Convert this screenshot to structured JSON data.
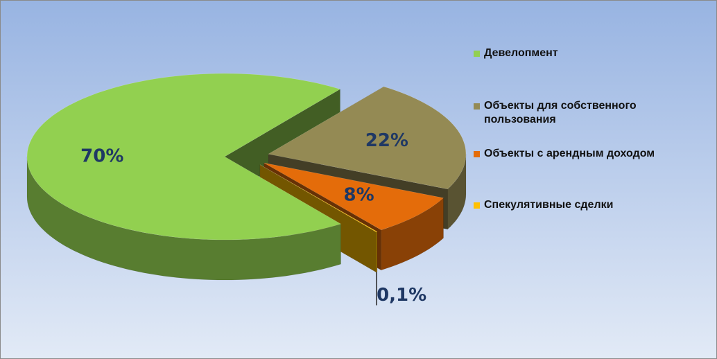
{
  "chart_data": {
    "type": "pie",
    "categories": [
      "Девелопмент",
      "Объекты для собственного пользования",
      "Объекты с арендным доходом",
      "Спекулятивные сделки"
    ],
    "values": [
      70,
      22,
      8,
      0.1
    ],
    "value_labels": [
      "70%",
      "22%",
      "8%",
      "0,1%"
    ],
    "colors": [
      "#92d050",
      "#948a54",
      "#e46c0a",
      "#ffc000"
    ],
    "legend": "right"
  }
}
